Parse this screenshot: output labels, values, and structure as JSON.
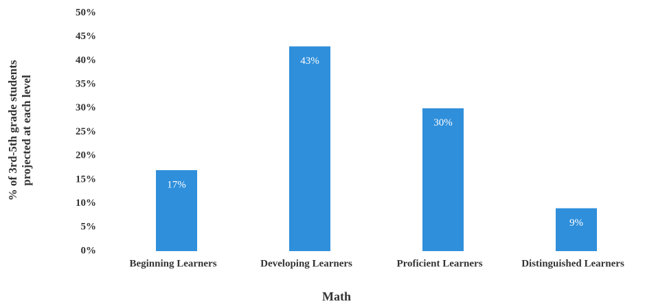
{
  "chart_data": {
    "type": "bar",
    "ylabel": [
      "% of 3rd-5th grade students",
      "projected at each level"
    ],
    "xlabel": "Math",
    "categories": [
      "Beginning Learners",
      "Developing Learners",
      "Proficient Learners",
      "Distinguished Learners"
    ],
    "values": [
      17,
      43,
      30,
      9
    ],
    "value_labels": [
      "17%",
      "43%",
      "30%",
      "9%"
    ],
    "color": "#2f8fdb",
    "ylim": [
      0,
      50
    ],
    "yticks": [
      {
        "value": 0,
        "label": "0%"
      },
      {
        "value": 5,
        "label": "5%"
      },
      {
        "value": 10,
        "label": "10%"
      },
      {
        "value": 15,
        "label": "15%"
      },
      {
        "value": 20,
        "label": "20%"
      },
      {
        "value": 25,
        "label": "25%"
      },
      {
        "value": 30,
        "label": "30%"
      },
      {
        "value": 35,
        "label": "35%"
      },
      {
        "value": 40,
        "label": "40%"
      },
      {
        "value": 45,
        "label": "45%"
      },
      {
        "value": 50,
        "label": "50%"
      }
    ],
    "grid": false
  }
}
